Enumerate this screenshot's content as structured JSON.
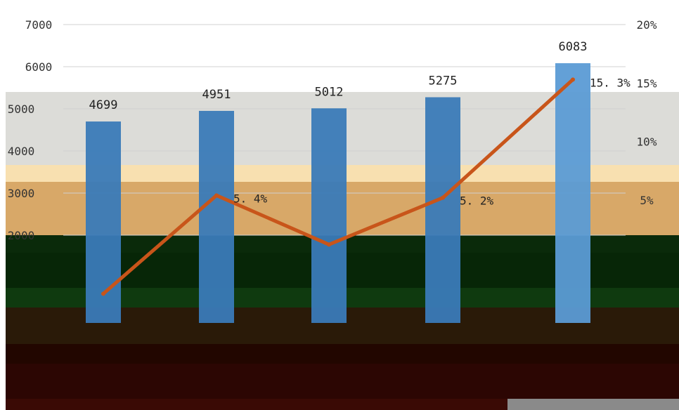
{
  "chart_data": {
    "type": "bar",
    "categories": [
      "",
      "",
      "",
      "",
      ""
    ],
    "series": [
      {
        "type": "bar",
        "values": [
          4699,
          4951,
          5012,
          5275,
          6083
        ],
        "color": "#3a7ab8"
      },
      {
        "type": "line",
        "values": [
          -3.0,
          5.4,
          1.2,
          5.2,
          15.3
        ],
        "color": "#c8551a"
      }
    ],
    "bar_labels": [
      "4699",
      "4951",
      "5012",
      "5275",
      "6083"
    ],
    "line_labels": [
      "",
      "5. 4%",
      "",
      "5. 2%",
      "15. 3%"
    ],
    "ylim_left": [
      0,
      7000
    ],
    "yticks_left": [
      "7000",
      "6000",
      "5000",
      "4000",
      "3000",
      "2000"
    ],
    "ylim_right": [
      -5,
      20
    ],
    "yticks_right": [
      "20%",
      "15%",
      "10%",
      "5%"
    ]
  }
}
